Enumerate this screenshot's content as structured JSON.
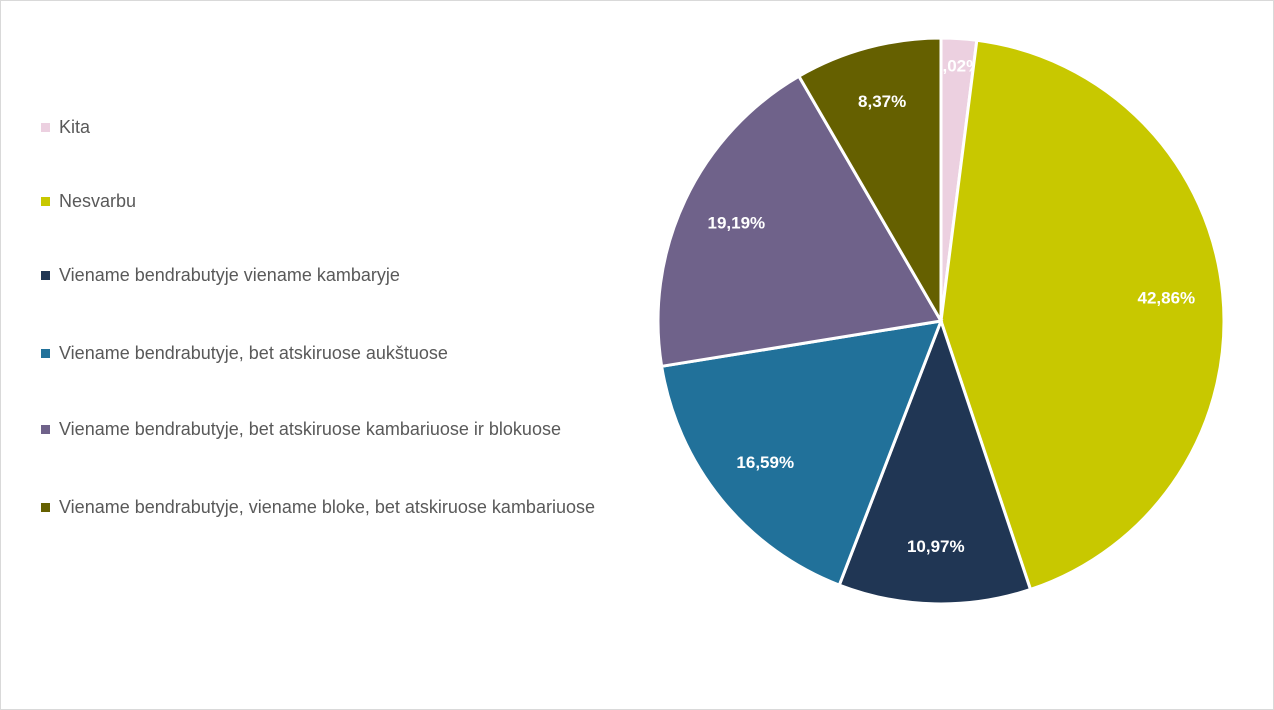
{
  "chart_data": {
    "type": "pie",
    "categories": [
      "Kita",
      "Nesvarbu",
      "Viename bendrabutyje viename kambaryje",
      "Viename bendrabutyje, bet atskiruose aukštuose",
      "Viename bendrabutyje, bet atskiruose kambariuose ir blokuose",
      "Viename bendrabutyje, viename bloke, bet atskiruose kambariuose"
    ],
    "values": [
      2.02,
      42.86,
      10.97,
      16.59,
      19.19,
      8.37
    ],
    "value_labels": [
      "2,02%",
      "42,86%",
      "10,97%",
      "16,59%",
      "19,19%",
      "8,37%"
    ],
    "colors": [
      "#ecd0e0",
      "#c8c800",
      "#203654",
      "#21719a",
      "#6f628a",
      "#656000"
    ],
    "legend": "left"
  }
}
